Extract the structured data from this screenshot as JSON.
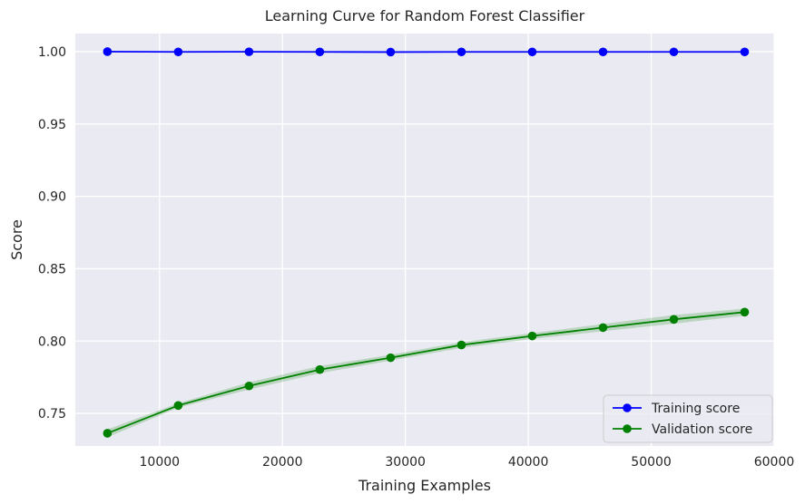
{
  "chart_data": {
    "type": "line",
    "title": "Learning Curve for Random Forest Classifier",
    "xlabel": "Training Examples",
    "ylabel": "Score",
    "xlim": [
      3150,
      60000
    ],
    "ylim": [
      0.7275,
      1.0125
    ],
    "xticks": [
      10000,
      20000,
      30000,
      40000,
      50000,
      60000
    ],
    "yticks": [
      0.75,
      0.8,
      0.85,
      0.9,
      0.95,
      1.0
    ],
    "xtick_labels": [
      "10000",
      "20000",
      "30000",
      "40000",
      "50000",
      "60000"
    ],
    "ytick_labels": [
      "0.75",
      "0.80",
      "0.85",
      "0.90",
      "0.95",
      "1.00"
    ],
    "grid": true,
    "legend_position": "lower-right",
    "x": [
      5760,
      11520,
      17280,
      23040,
      28800,
      34560,
      40320,
      46080,
      51840,
      57600
    ],
    "series": [
      {
        "name": "Training score",
        "color": "#0000ff",
        "values": [
          1.0,
          0.9998,
          0.9999,
          0.9998,
          0.9997,
          0.9998,
          0.9998,
          0.9998,
          0.9998,
          0.9998
        ],
        "band_lower": [
          1.0,
          0.9997,
          0.9998,
          0.9997,
          0.9996,
          0.9997,
          0.9997,
          0.9997,
          0.9997,
          0.9997
        ],
        "band_upper": [
          1.0,
          0.9999,
          1.0,
          0.9999,
          0.9998,
          0.9999,
          0.9999,
          0.9999,
          0.9999,
          0.9999
        ]
      },
      {
        "name": "Validation score",
        "color": "#008000",
        "values": [
          0.7363,
          0.7555,
          0.769,
          0.7803,
          0.7885,
          0.7973,
          0.8035,
          0.8093,
          0.815,
          0.82
        ],
        "band_lower": [
          0.7335,
          0.754,
          0.7665,
          0.7778,
          0.7865,
          0.7953,
          0.8015,
          0.8068,
          0.812,
          0.8175
        ],
        "band_upper": [
          0.739,
          0.757,
          0.7715,
          0.7828,
          0.7905,
          0.7993,
          0.8055,
          0.8118,
          0.818,
          0.8225
        ]
      }
    ]
  }
}
